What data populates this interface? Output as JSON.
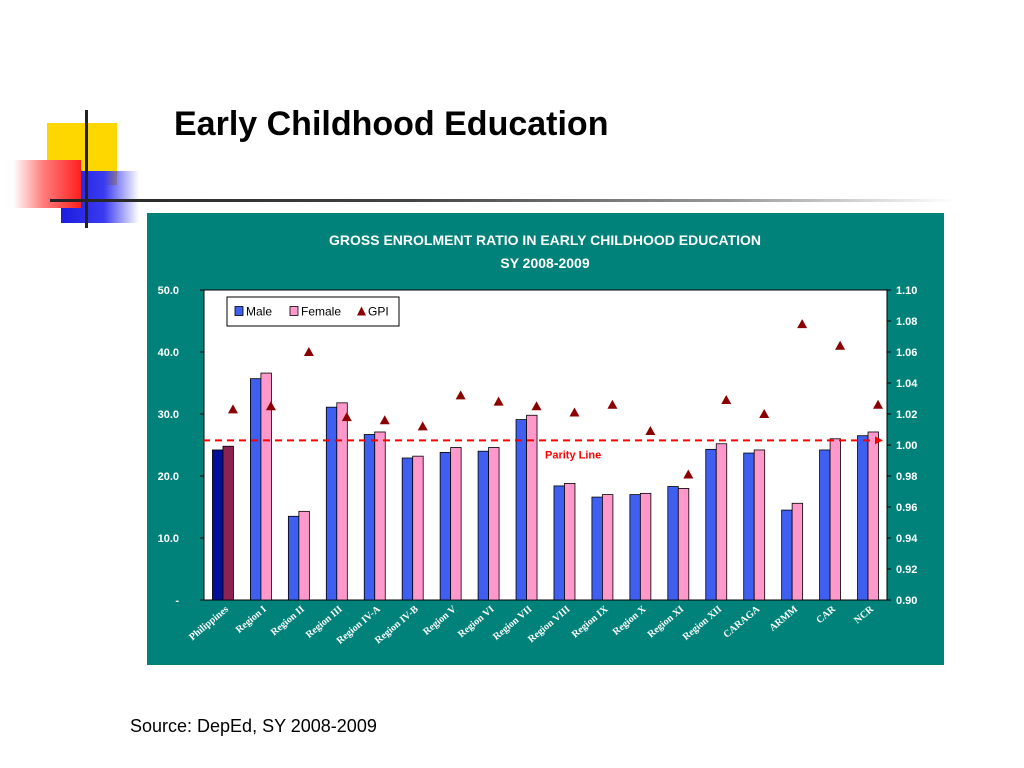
{
  "slide": {
    "title": "Early Childhood Education",
    "source": "Source: DepEd, SY 2008-2009"
  },
  "colors": {
    "panel": "#00827a",
    "male": "#3f5ff0",
    "female": "#ff99cc",
    "philippines_male": "#00109a",
    "philippines_female": "#8b2252",
    "gpi": "#8b0000",
    "parity_line": "#ff0000"
  },
  "chart_data": {
    "type": "bar",
    "title": "GROSS ENROLMENT RATIO IN EARLY CHILDHOOD EDUCATION",
    "subtitle": "SY 2008-2009",
    "categories": [
      "Philippines",
      "Region I",
      "Region II",
      "Region III",
      "Region IV-A",
      "Region IV-B",
      "Region V",
      "Region VI",
      "Region VII",
      "Region VIII",
      "Region IX",
      "Region X",
      "Region XI",
      "Region XII",
      "CARAGA",
      "ARMM",
      "CAR",
      "NCR"
    ],
    "series": [
      {
        "name": "Male",
        "axis": "left",
        "kind": "bar",
        "values": [
          24.2,
          35.7,
          13.5,
          31.1,
          26.7,
          22.9,
          23.8,
          24.0,
          29.1,
          18.4,
          16.6,
          17.0,
          18.3,
          24.3,
          23.7,
          14.5,
          24.2,
          26.5
        ]
      },
      {
        "name": "Female",
        "axis": "left",
        "kind": "bar",
        "values": [
          24.8,
          36.6,
          14.3,
          31.8,
          27.1,
          23.2,
          24.6,
          24.6,
          29.8,
          18.8,
          17.0,
          17.2,
          18.0,
          25.2,
          24.2,
          15.6,
          26.0,
          27.1
        ]
      },
      {
        "name": "GPI",
        "axis": "right",
        "kind": "marker",
        "values": [
          1.023,
          1.025,
          1.06,
          1.018,
          1.016,
          1.012,
          1.032,
          1.028,
          1.025,
          1.021,
          1.026,
          1.009,
          0.981,
          1.029,
          1.02,
          1.078,
          1.064,
          1.026
        ]
      }
    ],
    "y_left": {
      "ylim": [
        0,
        50
      ],
      "ticks": [
        "-",
        "10.0",
        "20.0",
        "30.0",
        "40.0",
        "50.0"
      ],
      "tick_values": [
        0,
        10,
        20,
        30,
        40,
        50
      ]
    },
    "y_right": {
      "ylim": [
        0.9,
        1.1
      ],
      "ticks": [
        "0.90",
        "0.92",
        "0.94",
        "0.96",
        "0.98",
        "1.00",
        "1.02",
        "1.04",
        "1.06",
        "1.08",
        "1.10"
      ],
      "tick_values": [
        0.9,
        0.92,
        0.94,
        0.96,
        0.98,
        1.0,
        1.02,
        1.04,
        1.06,
        1.08,
        1.1
      ]
    },
    "parity_line": {
      "value": 1.003,
      "label": "Parity Line"
    },
    "legend": {
      "position": "top-left",
      "entries": [
        "Male",
        "Female",
        "GPI"
      ]
    },
    "grid": false
  }
}
